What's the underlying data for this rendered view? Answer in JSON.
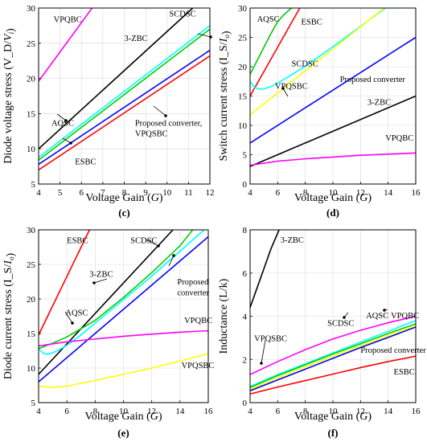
{
  "chart_data": [
    {
      "type": "line",
      "panel_label": "(c)",
      "xlabel": "Voltage Gain (G)",
      "ylabel": "Diode voltage stress (V_D/V_i)",
      "xlim": [
        4,
        12
      ],
      "ylim": [
        5,
        30
      ],
      "xticks": [
        4,
        5,
        6,
        7,
        8,
        9,
        10,
        11,
        12
      ],
      "yticks": [
        5,
        10,
        15,
        20,
        25,
        30
      ],
      "grid": true,
      "series": [
        {
          "name": "VPQBC",
          "color": "#ff00ff",
          "x": [
            4,
            6.5
          ],
          "y": [
            19.6,
            30
          ]
        },
        {
          "name": "3-ZBC",
          "color": "#000000",
          "x": [
            4,
            11.2
          ],
          "y": [
            10,
            30
          ]
        },
        {
          "name": "SCDSC",
          "color": "#00ffff",
          "x": [
            4,
            12
          ],
          "y": [
            8.8,
            27.5
          ]
        },
        {
          "name": "AQSC",
          "color": "#00cc00",
          "x": [
            4,
            12
          ],
          "y": [
            8.4,
            27
          ]
        },
        {
          "name": "Proposed converter, VPQSBC",
          "color": "#0000ff",
          "x": [
            4,
            12
          ],
          "y": [
            7.8,
            24
          ]
        },
        {
          "name": "ESBC",
          "color": "#ff0000",
          "x": [
            4,
            12
          ],
          "y": [
            7,
            23.2
          ]
        }
      ],
      "annotations": [
        {
          "text": "VPQBC",
          "x": 4.7,
          "y": 28
        },
        {
          "text": "SCDSC",
          "x": 10.1,
          "y": 28.8
        },
        {
          "text": "3-ZBC",
          "x": 8.0,
          "y": 25.3
        },
        {
          "text": "AQSC",
          "x": 4.6,
          "y": 13.3
        },
        {
          "text": "Proposed converter,",
          "x": 8.5,
          "y": 13.3
        },
        {
          "text": "VPQSBC",
          "x": 8.5,
          "y": 11.8
        },
        {
          "text": "ESBC",
          "x": 5.7,
          "y": 7.8
        }
      ]
    },
    {
      "type": "line",
      "panel_label": "(d)",
      "xlabel": "Voltage Gain (G)",
      "ylabel": "Switch current stress (I_S/I_o)",
      "xlim": [
        4,
        16
      ],
      "ylim": [
        0,
        30
      ],
      "xticks": [
        4,
        6,
        8,
        10,
        12,
        14,
        16
      ],
      "yticks": [
        0,
        5,
        10,
        15,
        20,
        25,
        30
      ],
      "grid": true,
      "series": [
        {
          "name": "AQSC",
          "color": "#00cc00",
          "x": [
            4,
            4.5,
            5,
            5.5,
            6,
            6.5,
            7
          ],
          "y": [
            18.7,
            21,
            23.3,
            25.6,
            27.7,
            29,
            30
          ]
        },
        {
          "name": "ESBC",
          "color": "#ff0000",
          "x": [
            4,
            7.6
          ],
          "y": [
            15,
            30
          ]
        },
        {
          "name": "SCDSC",
          "color": "#00ffff",
          "x": [
            4,
            4.3,
            4.6,
            5,
            5.5,
            6,
            7,
            8,
            10,
            12,
            13.8
          ],
          "y": [
            17.5,
            16.5,
            16.2,
            16.2,
            16.6,
            17.2,
            18.6,
            20.1,
            23.4,
            26.9,
            30
          ]
        },
        {
          "name": "VPQSBC",
          "color": "#ffff00",
          "x": [
            4,
            5,
            6,
            8,
            10,
            12,
            13.7
          ],
          "y": [
            11.8,
            13.7,
            15.5,
            19.3,
            23,
            26.8,
            30
          ]
        },
        {
          "name": "Proposed converter",
          "color": "#0000ff",
          "x": [
            4,
            16
          ],
          "y": [
            7,
            25
          ]
        },
        {
          "name": "3-ZBC",
          "color": "#000000",
          "x": [
            4,
            16
          ],
          "y": [
            3,
            15
          ]
        },
        {
          "name": "VPQBC",
          "color": "#ff00ff",
          "x": [
            4,
            6,
            8,
            10,
            12,
            14,
            16
          ],
          "y": [
            3.2,
            3.9,
            4.3,
            4.6,
            4.9,
            5.1,
            5.3
          ]
        }
      ],
      "annotations": [
        {
          "text": "AQSC",
          "x": 4.5,
          "y": 27.7
        },
        {
          "text": "ESBC",
          "x": 7.7,
          "y": 27.2
        },
        {
          "text": "SCDSC",
          "x": 7.0,
          "y": 20.1
        },
        {
          "text": "VPQSBC",
          "x": 5.8,
          "y": 16.2
        },
        {
          "text": "Proposed converter",
          "x": 10.5,
          "y": 17.4
        },
        {
          "text": "3-ZBC",
          "x": 12.5,
          "y": 13.5
        },
        {
          "text": "VPQBC",
          "x": 13.8,
          "y": 7.4
        }
      ]
    },
    {
      "type": "line",
      "panel_label": "(e)",
      "xlabel": "Voltage Gain (G)",
      "ylabel": "Diode current stress (I_S/I_o)",
      "xlim": [
        4,
        16
      ],
      "ylim": [
        5,
        30
      ],
      "xticks": [
        4,
        6,
        8,
        10,
        12,
        14,
        16
      ],
      "yticks": [
        5,
        10,
        15,
        20,
        25,
        30
      ],
      "grid": true,
      "series": [
        {
          "name": "ESBC",
          "color": "#ff0000",
          "x": [
            4,
            7.6
          ],
          "y": [
            14.8,
            30
          ]
        },
        {
          "name": "3-ZBC",
          "color": "#000000",
          "x": [
            4,
            13.5
          ],
          "y": [
            9.1,
            30
          ]
        },
        {
          "name": "SCDSC",
          "color": "#00ffff",
          "x": [
            4,
            4.3,
            4.6,
            5,
            5.5,
            6,
            7,
            8,
            10,
            12,
            14,
            15.7
          ],
          "y": [
            12.8,
            12.2,
            12.0,
            12.2,
            12.7,
            13.3,
            14.8,
            16.5,
            19.9,
            23.3,
            26.9,
            30
          ]
        },
        {
          "name": "AQSC",
          "color": "#00cc00",
          "x": [
            4,
            5,
            6,
            8,
            10,
            12,
            14,
            14.9
          ],
          "y": [
            12.8,
            13.6,
            14.5,
            16.9,
            20.2,
            23.8,
            27.7,
            30
          ]
        },
        {
          "name": "Proposed converter",
          "color": "#0000ff",
          "x": [
            4,
            16
          ],
          "y": [
            8,
            29
          ]
        },
        {
          "name": "VPQBC",
          "color": "#ff00ff",
          "x": [
            4,
            6,
            8,
            10,
            12,
            14,
            16
          ],
          "y": [
            13.2,
            13.8,
            14.2,
            14.6,
            14.9,
            15.2,
            15.4
          ]
        },
        {
          "name": "VPQSBC",
          "color": "#ffff00",
          "x": [
            4,
            5,
            6,
            8,
            10,
            12,
            14,
            16
          ],
          "y": [
            7.4,
            7.2,
            7.4,
            8.2,
            9.1,
            10.0,
            11.0,
            12.1
          ]
        }
      ],
      "annotations": [
        {
          "text": "ESBC",
          "x": 6.0,
          "y": 28.1
        },
        {
          "text": "SCDSC",
          "x": 10.5,
          "y": 28.1
        },
        {
          "text": "3-ZBC",
          "x": 7.6,
          "y": 23.2
        },
        {
          "text": "Proposed",
          "x": 13.8,
          "y": 22.1
        },
        {
          "text": "converter",
          "x": 13.8,
          "y": 20.5
        },
        {
          "text": "AQSC",
          "x": 5.9,
          "y": 17.6
        },
        {
          "text": "VPQBC",
          "x": 14.3,
          "y": 16.5
        },
        {
          "text": "VPQSBC",
          "x": 14.1,
          "y": 10.0
        }
      ]
    },
    {
      "type": "line",
      "panel_label": "(f)",
      "xlabel": "Voltage Gain (G)",
      "ylabel": "Inductance (L/k)",
      "xlim": [
        4,
        16
      ],
      "ylim": [
        0,
        8
      ],
      "xticks": [
        4,
        6,
        8,
        10,
        12,
        14,
        16
      ],
      "yticks": [
        0,
        2,
        4,
        6,
        8
      ],
      "grid": true,
      "series": [
        {
          "name": "3-ZBC",
          "color": "#000000",
          "x": [
            4,
            4.5,
            5,
            5.5,
            6.1
          ],
          "y": [
            4.4,
            5.3,
            6.2,
            7.1,
            8
          ]
        },
        {
          "name": "VPQBC",
          "color": "#ff00ff",
          "x": [
            4,
            6,
            8,
            10,
            12,
            14,
            16
          ],
          "y": [
            1.3,
            1.9,
            2.45,
            2.95,
            3.35,
            3.7,
            4.0
          ]
        },
        {
          "name": "SCDSC",
          "color": "#00ffff",
          "x": [
            4,
            6,
            8,
            10,
            12,
            14,
            16
          ],
          "y": [
            0.75,
            1.3,
            1.8,
            2.3,
            2.8,
            3.3,
            3.8
          ]
        },
        {
          "name": "AQSC",
          "color": "#00cc00",
          "x": [
            4,
            6,
            8,
            10,
            12,
            14,
            16
          ],
          "y": [
            0.7,
            1.25,
            1.75,
            2.25,
            2.72,
            3.2,
            3.65
          ]
        },
        {
          "name": "VPQSBC",
          "color": "#ffff00",
          "x": [
            4,
            6,
            8,
            10,
            12,
            14,
            16
          ],
          "y": [
            0.62,
            1.15,
            1.65,
            2.15,
            2.62,
            3.1,
            3.55
          ]
        },
        {
          "name": "Proposed converter",
          "color": "#0000ff",
          "x": [
            4,
            6,
            8,
            10,
            12,
            14,
            16
          ],
          "y": [
            0.55,
            1.05,
            1.55,
            2.05,
            2.55,
            3.02,
            3.5
          ]
        },
        {
          "name": "ESBC",
          "color": "#ff0000",
          "x": [
            4,
            6,
            8,
            10,
            12,
            14,
            16
          ],
          "y": [
            0.4,
            0.72,
            1.02,
            1.32,
            1.62,
            1.9,
            2.15
          ]
        }
      ],
      "annotations": [
        {
          "text": "3-ZBC",
          "x": 6.2,
          "y": 7.4
        },
        {
          "text": "VPQSBC",
          "x": 4.3,
          "y": 2.85
        },
        {
          "text": "SCDSC",
          "x": 9.6,
          "y": 3.55
        },
        {
          "text": "AQSC",
          "x": 12.4,
          "y": 3.9
        },
        {
          "text": "VPQBC",
          "x": 14.2,
          "y": 3.9
        },
        {
          "text": "Proposed converter",
          "x": 12.0,
          "y": 2.3
        },
        {
          "text": "ESBC",
          "x": 14.4,
          "y": 1.3
        }
      ]
    }
  ]
}
